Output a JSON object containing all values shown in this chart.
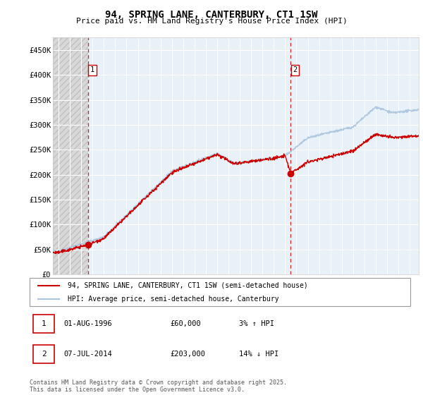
{
  "title": "94, SPRING LANE, CANTERBURY, CT1 1SW",
  "subtitle": "Price paid vs. HM Land Registry's House Price Index (HPI)",
  "ylim": [
    0,
    475000
  ],
  "yticks": [
    0,
    50000,
    100000,
    150000,
    200000,
    250000,
    300000,
    350000,
    400000,
    450000
  ],
  "ytick_labels": [
    "£0",
    "£50K",
    "£100K",
    "£150K",
    "£200K",
    "£250K",
    "£300K",
    "£350K",
    "£400K",
    "£450K"
  ],
  "xlim_start": 1993.5,
  "xlim_end": 2025.8,
  "hpi_color": "#aac4dd",
  "property_color": "#cc0000",
  "sale1_date": 1996.583,
  "sale1_price": 60000,
  "sale1_label": "1",
  "sale2_date": 2014.5,
  "sale2_price": 203000,
  "sale2_label": "2",
  "legend_property": "94, SPRING LANE, CANTERBURY, CT1 1SW (semi-detached house)",
  "legend_hpi": "HPI: Average price, semi-detached house, Canterbury",
  "note1_label": "1",
  "note1_date": "01-AUG-1996",
  "note1_price": "£60,000",
  "note1_hpi": "3% ↑ HPI",
  "note2_label": "2",
  "note2_date": "07-JUL-2014",
  "note2_price": "£203,000",
  "note2_hpi": "14% ↓ HPI",
  "footer": "Contains HM Land Registry data © Crown copyright and database right 2025.\nThis data is licensed under the Open Government Licence v3.0.",
  "title_fontsize": 10,
  "subtitle_fontsize": 8
}
